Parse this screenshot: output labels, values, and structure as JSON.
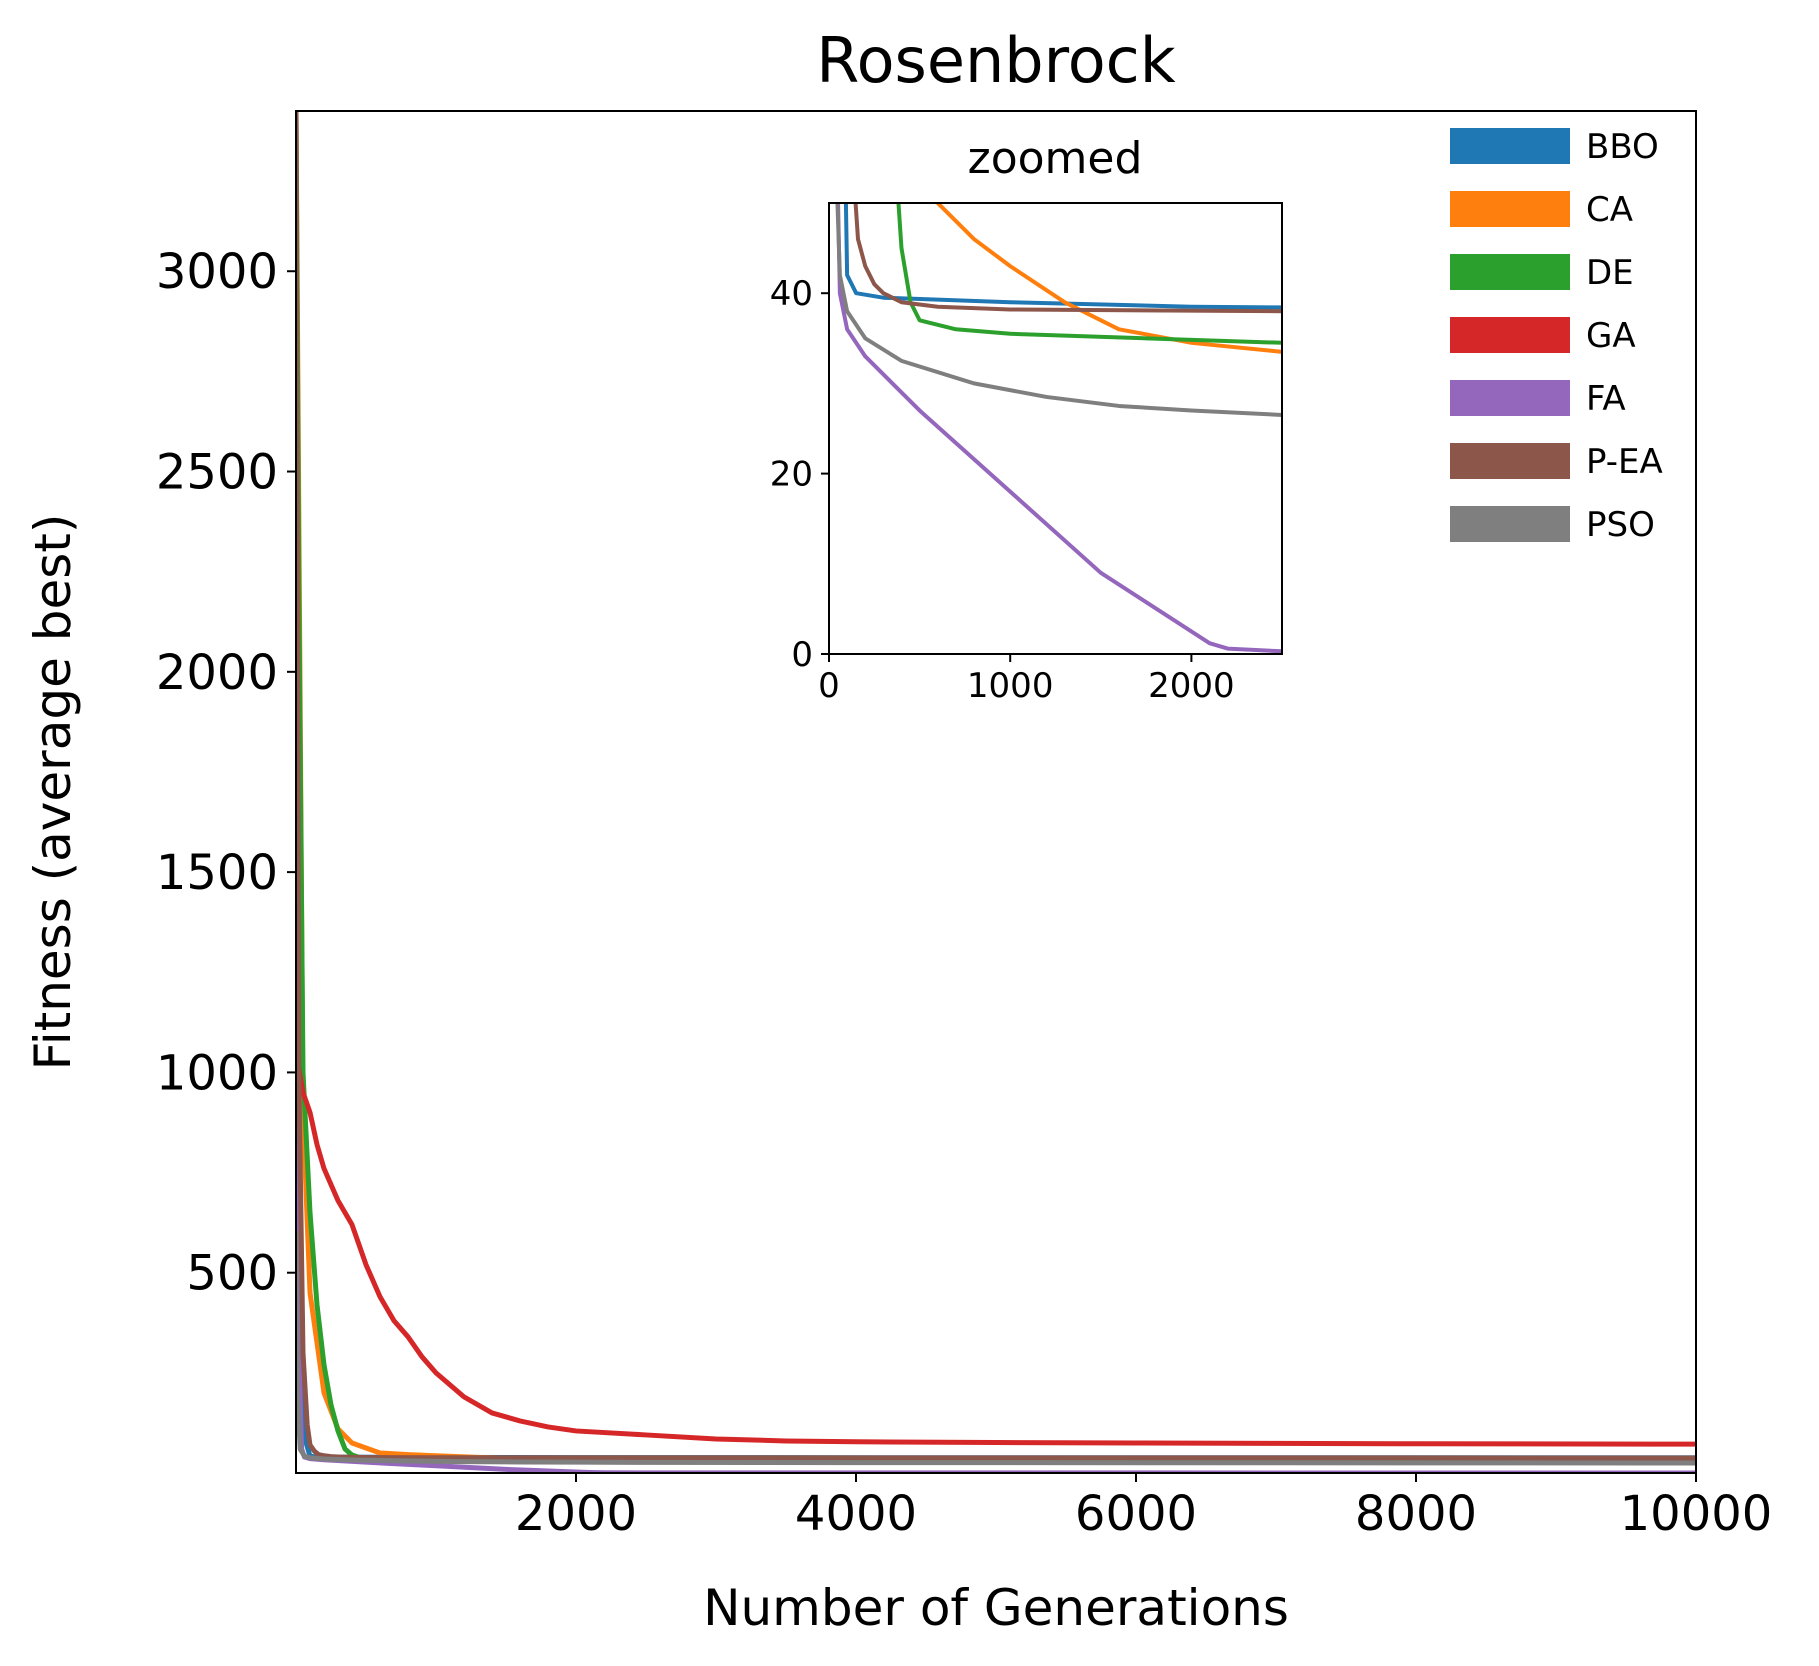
{
  "chart_data": {
    "type": "line",
    "title": "Rosenbrock",
    "xlabel": "Number of Generations",
    "ylabel": "Fitness (average best)",
    "xlim": [
      0,
      10000
    ],
    "ylim": [
      0,
      3400
    ],
    "xticks": [
      2000,
      4000,
      6000,
      8000,
      10000
    ],
    "yticks": [
      500,
      1000,
      1500,
      2000,
      2500,
      3000
    ],
    "grid": false,
    "legend": "top-right",
    "series": [
      {
        "name": "BBO",
        "color": "#1f77b4",
        "x": [
          0,
          10,
          30,
          60,
          100,
          150,
          300,
          1000,
          2000,
          4000,
          10000
        ],
        "y": [
          3400,
          1200,
          300,
          90,
          42,
          40,
          39.5,
          39,
          38.5,
          38.2,
          38
        ]
      },
      {
        "name": "CA",
        "color": "#ff7f0e",
        "x": [
          0,
          50,
          100,
          200,
          300,
          400,
          600,
          800,
          1000,
          1300,
          1600,
          2000,
          2500,
          4000,
          10000
        ],
        "y": [
          3400,
          900,
          450,
          200,
          110,
          75,
          50,
          46,
          43,
          39,
          36,
          34.5,
          33.5,
          32,
          29
        ]
      },
      {
        "name": "DE",
        "color": "#2ca02c",
        "x": [
          0,
          20,
          50,
          100,
          150,
          200,
          250,
          300,
          350,
          400,
          450,
          500,
          700,
          1000,
          2500,
          10000
        ],
        "y": [
          3400,
          2200,
          1000,
          650,
          420,
          270,
          170,
          105,
          60,
          45,
          39,
          37,
          36,
          35.5,
          34.5,
          33
        ]
      },
      {
        "name": "GA",
        "color": "#d62728",
        "x": [
          0,
          50,
          100,
          150,
          200,
          300,
          400,
          500,
          600,
          700,
          800,
          900,
          1000,
          1200,
          1400,
          1600,
          1800,
          2000,
          2500,
          3000,
          3500,
          4000,
          5000,
          6000,
          7000,
          8000,
          10000
        ],
        "y": [
          1050,
          950,
          900,
          820,
          760,
          680,
          620,
          520,
          440,
          380,
          340,
          290,
          250,
          190,
          150,
          130,
          115,
          105,
          95,
          85,
          80,
          78,
          76,
          75,
          74,
          73,
          72
        ]
      },
      {
        "name": "FA",
        "color": "#9467bd",
        "x": [
          0,
          10,
          20,
          40,
          60,
          100,
          200,
          500,
          1000,
          1500,
          2000,
          2100,
          2200,
          2500,
          4000,
          10000
        ],
        "y": [
          2200,
          900,
          300,
          60,
          40,
          36,
          33,
          27,
          18,
          9,
          2.5,
          1.2,
          0.6,
          0.3,
          0.2,
          0.1
        ]
      },
      {
        "name": "P-EA",
        "color": "#8c564b",
        "x": [
          0,
          20,
          50,
          80,
          100,
          130,
          160,
          200,
          250,
          300,
          400,
          600,
          1000,
          2500,
          10000
        ],
        "y": [
          3400,
          1000,
          300,
          120,
          70,
          55,
          46,
          43,
          41,
          40,
          39,
          38.5,
          38.2,
          38,
          37.5
        ]
      },
      {
        "name": "PSO",
        "color": "#7f7f7f",
        "x": [
          0,
          10,
          30,
          60,
          100,
          200,
          400,
          800,
          1200,
          1600,
          2000,
          2500,
          4000,
          10000
        ],
        "y": [
          600,
          200,
          60,
          42,
          38,
          35,
          32.5,
          30,
          28.5,
          27.5,
          27,
          26.5,
          26,
          25
        ]
      }
    ],
    "inset": {
      "title": "zoomed",
      "xlim": [
        0,
        2500
      ],
      "ylim": [
        0,
        50
      ],
      "xticks": [
        0,
        1000,
        2000
      ],
      "yticks": [
        0,
        20,
        40
      ]
    }
  }
}
